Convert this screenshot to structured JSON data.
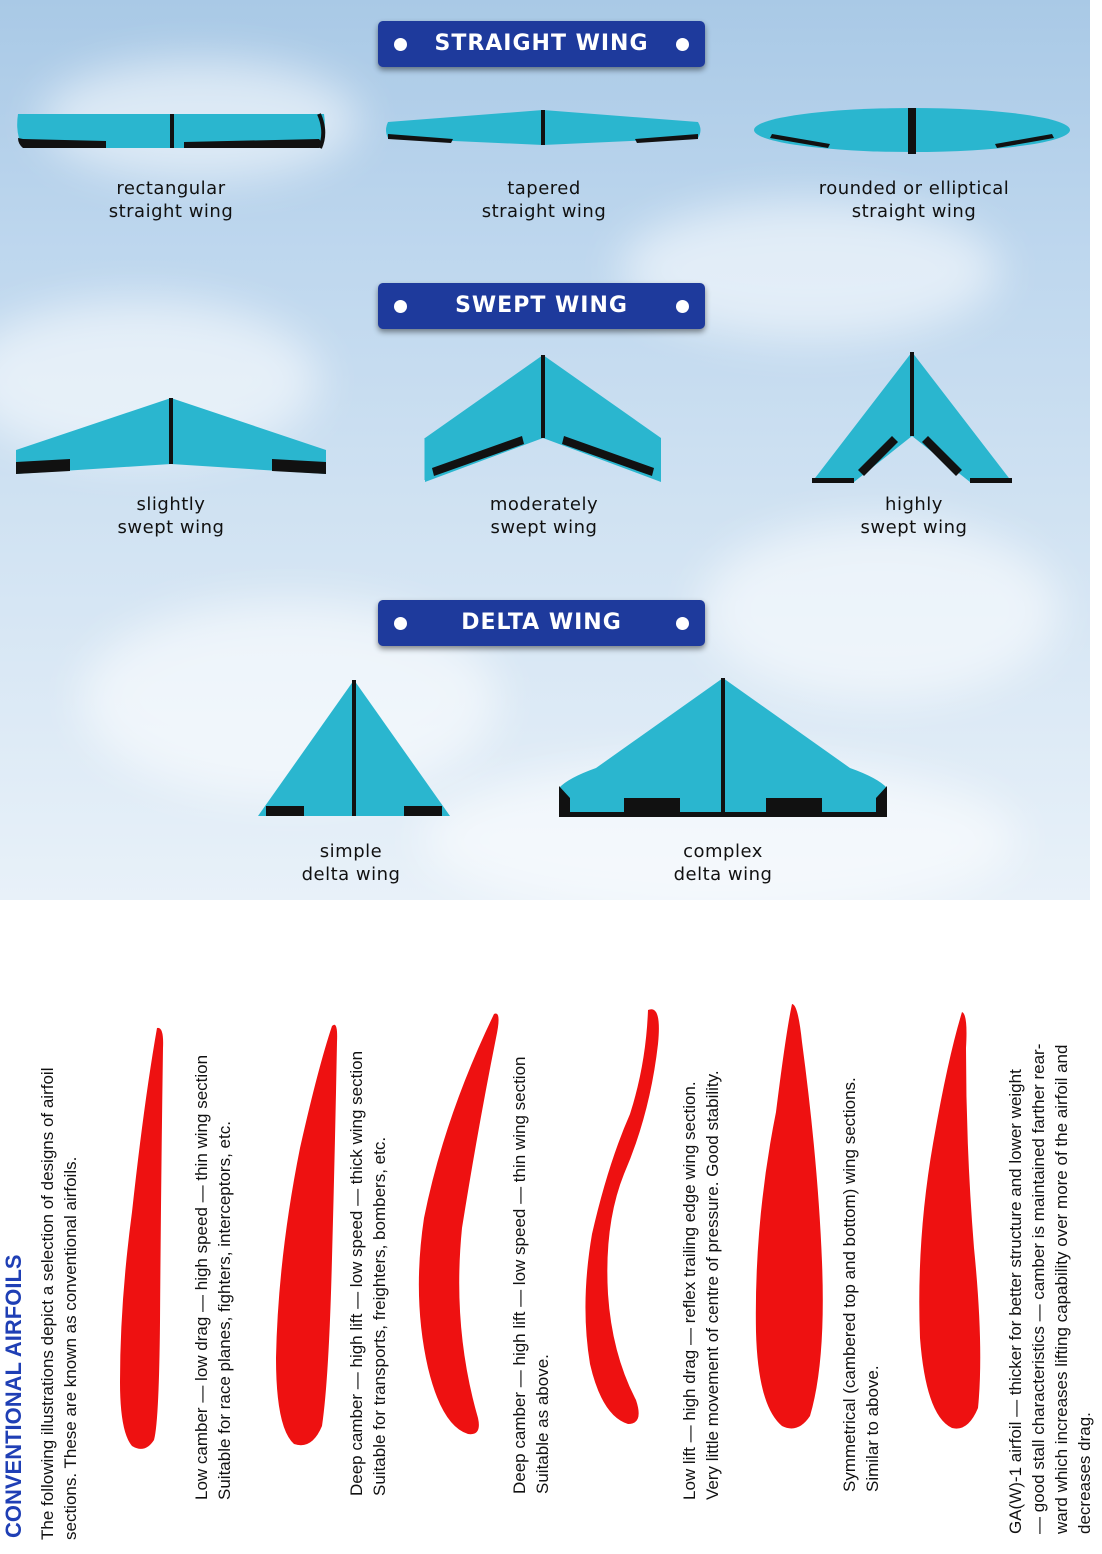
{
  "colors": {
    "wing_fill": "#2ab6cf",
    "wing_dark": "#111111",
    "banner": "#1e3a9c",
    "airfoil": "#ee1111",
    "title": "#1f3fb5"
  },
  "sections": {
    "straight": {
      "title": "STRAIGHT WING",
      "wings": [
        {
          "line1": "rectangular",
          "line2": "straight wing"
        },
        {
          "line1": "tapered",
          "line2": "straight wing"
        },
        {
          "line1": "rounded or elliptical",
          "line2": "straight wing"
        }
      ]
    },
    "swept": {
      "title": "SWEPT WING",
      "wings": [
        {
          "line1": "slightly",
          "line2": "swept wing"
        },
        {
          "line1": "moderately",
          "line2": "swept wing"
        },
        {
          "line1": "highly",
          "line2": "swept wing"
        }
      ]
    },
    "delta": {
      "title": "DELTA WING",
      "wings": [
        {
          "line1": "simple",
          "line2": "delta wing"
        },
        {
          "line1": "complex",
          "line2": "delta wing"
        }
      ]
    }
  },
  "airfoils": {
    "title": "CONVENTIONAL AIRFOILS",
    "intro": [
      "The following illustrations depict a selection of designs of airfoil",
      "sections. These are known as conventional airfoils."
    ],
    "items": [
      {
        "lines": [
          "Low camber — low drag — high speed — thin wing section",
          "Suitable for race planes, fighters, interceptors, etc."
        ]
      },
      {
        "lines": [
          "Deep camber — high lift — low speed — thick wing section",
          "Suitable for transports, freighters, bombers, etc."
        ]
      },
      {
        "lines": [
          "Deep camber — high lift — low speed — thin wing section",
          "Suitable as above."
        ]
      },
      {
        "lines": [
          "Low lift — high drag — reflex trailing edge wing section.",
          "Very little movement of centre of pressure. Good stability."
        ]
      },
      {
        "lines": [
          "Symmetrical (cambered top and bottom) wing sections.",
          "Similar to above."
        ]
      },
      {
        "lines": [
          "GA(W)-1 airfoil — thicker for better structure and lower weight",
          "— good stall characteristics — camber is maintained farther rear-",
          "ward which increases lifting capability over more of the airfoil and",
          "decreases drag."
        ]
      }
    ]
  }
}
